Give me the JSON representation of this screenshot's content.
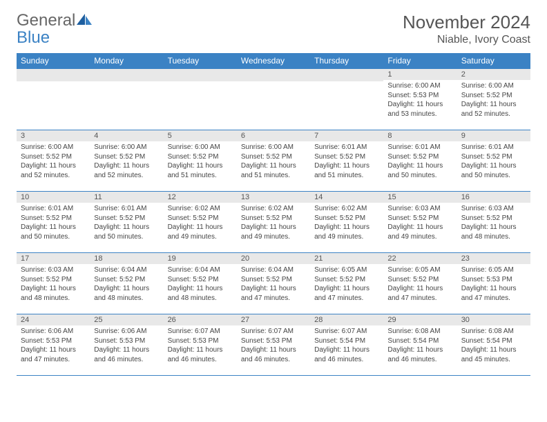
{
  "brand": {
    "word1": "General",
    "word2": "Blue"
  },
  "title": "November 2024",
  "location": "Niable, Ivory Coast",
  "colors": {
    "header_bg": "#3b82c4",
    "header_text": "#ffffff",
    "daynum_bg": "#e8e8e8",
    "border": "#3b82c4",
    "body_text": "#444444",
    "title_text": "#555555"
  },
  "weekdays": [
    "Sunday",
    "Monday",
    "Tuesday",
    "Wednesday",
    "Thursday",
    "Friday",
    "Saturday"
  ],
  "weeks": [
    [
      {
        "n": "",
        "lines": [
          "",
          "",
          "",
          ""
        ]
      },
      {
        "n": "",
        "lines": [
          "",
          "",
          "",
          ""
        ]
      },
      {
        "n": "",
        "lines": [
          "",
          "",
          "",
          ""
        ]
      },
      {
        "n": "",
        "lines": [
          "",
          "",
          "",
          ""
        ]
      },
      {
        "n": "",
        "lines": [
          "",
          "",
          "",
          ""
        ]
      },
      {
        "n": "1",
        "lines": [
          "Sunrise: 6:00 AM",
          "Sunset: 5:53 PM",
          "Daylight: 11 hours",
          "and 53 minutes."
        ]
      },
      {
        "n": "2",
        "lines": [
          "Sunrise: 6:00 AM",
          "Sunset: 5:52 PM",
          "Daylight: 11 hours",
          "and 52 minutes."
        ]
      }
    ],
    [
      {
        "n": "3",
        "lines": [
          "Sunrise: 6:00 AM",
          "Sunset: 5:52 PM",
          "Daylight: 11 hours",
          "and 52 minutes."
        ]
      },
      {
        "n": "4",
        "lines": [
          "Sunrise: 6:00 AM",
          "Sunset: 5:52 PM",
          "Daylight: 11 hours",
          "and 52 minutes."
        ]
      },
      {
        "n": "5",
        "lines": [
          "Sunrise: 6:00 AM",
          "Sunset: 5:52 PM",
          "Daylight: 11 hours",
          "and 51 minutes."
        ]
      },
      {
        "n": "6",
        "lines": [
          "Sunrise: 6:00 AM",
          "Sunset: 5:52 PM",
          "Daylight: 11 hours",
          "and 51 minutes."
        ]
      },
      {
        "n": "7",
        "lines": [
          "Sunrise: 6:01 AM",
          "Sunset: 5:52 PM",
          "Daylight: 11 hours",
          "and 51 minutes."
        ]
      },
      {
        "n": "8",
        "lines": [
          "Sunrise: 6:01 AM",
          "Sunset: 5:52 PM",
          "Daylight: 11 hours",
          "and 50 minutes."
        ]
      },
      {
        "n": "9",
        "lines": [
          "Sunrise: 6:01 AM",
          "Sunset: 5:52 PM",
          "Daylight: 11 hours",
          "and 50 minutes."
        ]
      }
    ],
    [
      {
        "n": "10",
        "lines": [
          "Sunrise: 6:01 AM",
          "Sunset: 5:52 PM",
          "Daylight: 11 hours",
          "and 50 minutes."
        ]
      },
      {
        "n": "11",
        "lines": [
          "Sunrise: 6:01 AM",
          "Sunset: 5:52 PM",
          "Daylight: 11 hours",
          "and 50 minutes."
        ]
      },
      {
        "n": "12",
        "lines": [
          "Sunrise: 6:02 AM",
          "Sunset: 5:52 PM",
          "Daylight: 11 hours",
          "and 49 minutes."
        ]
      },
      {
        "n": "13",
        "lines": [
          "Sunrise: 6:02 AM",
          "Sunset: 5:52 PM",
          "Daylight: 11 hours",
          "and 49 minutes."
        ]
      },
      {
        "n": "14",
        "lines": [
          "Sunrise: 6:02 AM",
          "Sunset: 5:52 PM",
          "Daylight: 11 hours",
          "and 49 minutes."
        ]
      },
      {
        "n": "15",
        "lines": [
          "Sunrise: 6:03 AM",
          "Sunset: 5:52 PM",
          "Daylight: 11 hours",
          "and 49 minutes."
        ]
      },
      {
        "n": "16",
        "lines": [
          "Sunrise: 6:03 AM",
          "Sunset: 5:52 PM",
          "Daylight: 11 hours",
          "and 48 minutes."
        ]
      }
    ],
    [
      {
        "n": "17",
        "lines": [
          "Sunrise: 6:03 AM",
          "Sunset: 5:52 PM",
          "Daylight: 11 hours",
          "and 48 minutes."
        ]
      },
      {
        "n": "18",
        "lines": [
          "Sunrise: 6:04 AM",
          "Sunset: 5:52 PM",
          "Daylight: 11 hours",
          "and 48 minutes."
        ]
      },
      {
        "n": "19",
        "lines": [
          "Sunrise: 6:04 AM",
          "Sunset: 5:52 PM",
          "Daylight: 11 hours",
          "and 48 minutes."
        ]
      },
      {
        "n": "20",
        "lines": [
          "Sunrise: 6:04 AM",
          "Sunset: 5:52 PM",
          "Daylight: 11 hours",
          "and 47 minutes."
        ]
      },
      {
        "n": "21",
        "lines": [
          "Sunrise: 6:05 AM",
          "Sunset: 5:52 PM",
          "Daylight: 11 hours",
          "and 47 minutes."
        ]
      },
      {
        "n": "22",
        "lines": [
          "Sunrise: 6:05 AM",
          "Sunset: 5:52 PM",
          "Daylight: 11 hours",
          "and 47 minutes."
        ]
      },
      {
        "n": "23",
        "lines": [
          "Sunrise: 6:05 AM",
          "Sunset: 5:53 PM",
          "Daylight: 11 hours",
          "and 47 minutes."
        ]
      }
    ],
    [
      {
        "n": "24",
        "lines": [
          "Sunrise: 6:06 AM",
          "Sunset: 5:53 PM",
          "Daylight: 11 hours",
          "and 47 minutes."
        ]
      },
      {
        "n": "25",
        "lines": [
          "Sunrise: 6:06 AM",
          "Sunset: 5:53 PM",
          "Daylight: 11 hours",
          "and 46 minutes."
        ]
      },
      {
        "n": "26",
        "lines": [
          "Sunrise: 6:07 AM",
          "Sunset: 5:53 PM",
          "Daylight: 11 hours",
          "and 46 minutes."
        ]
      },
      {
        "n": "27",
        "lines": [
          "Sunrise: 6:07 AM",
          "Sunset: 5:53 PM",
          "Daylight: 11 hours",
          "and 46 minutes."
        ]
      },
      {
        "n": "28",
        "lines": [
          "Sunrise: 6:07 AM",
          "Sunset: 5:54 PM",
          "Daylight: 11 hours",
          "and 46 minutes."
        ]
      },
      {
        "n": "29",
        "lines": [
          "Sunrise: 6:08 AM",
          "Sunset: 5:54 PM",
          "Daylight: 11 hours",
          "and 46 minutes."
        ]
      },
      {
        "n": "30",
        "lines": [
          "Sunrise: 6:08 AM",
          "Sunset: 5:54 PM",
          "Daylight: 11 hours",
          "and 45 minutes."
        ]
      }
    ]
  ]
}
